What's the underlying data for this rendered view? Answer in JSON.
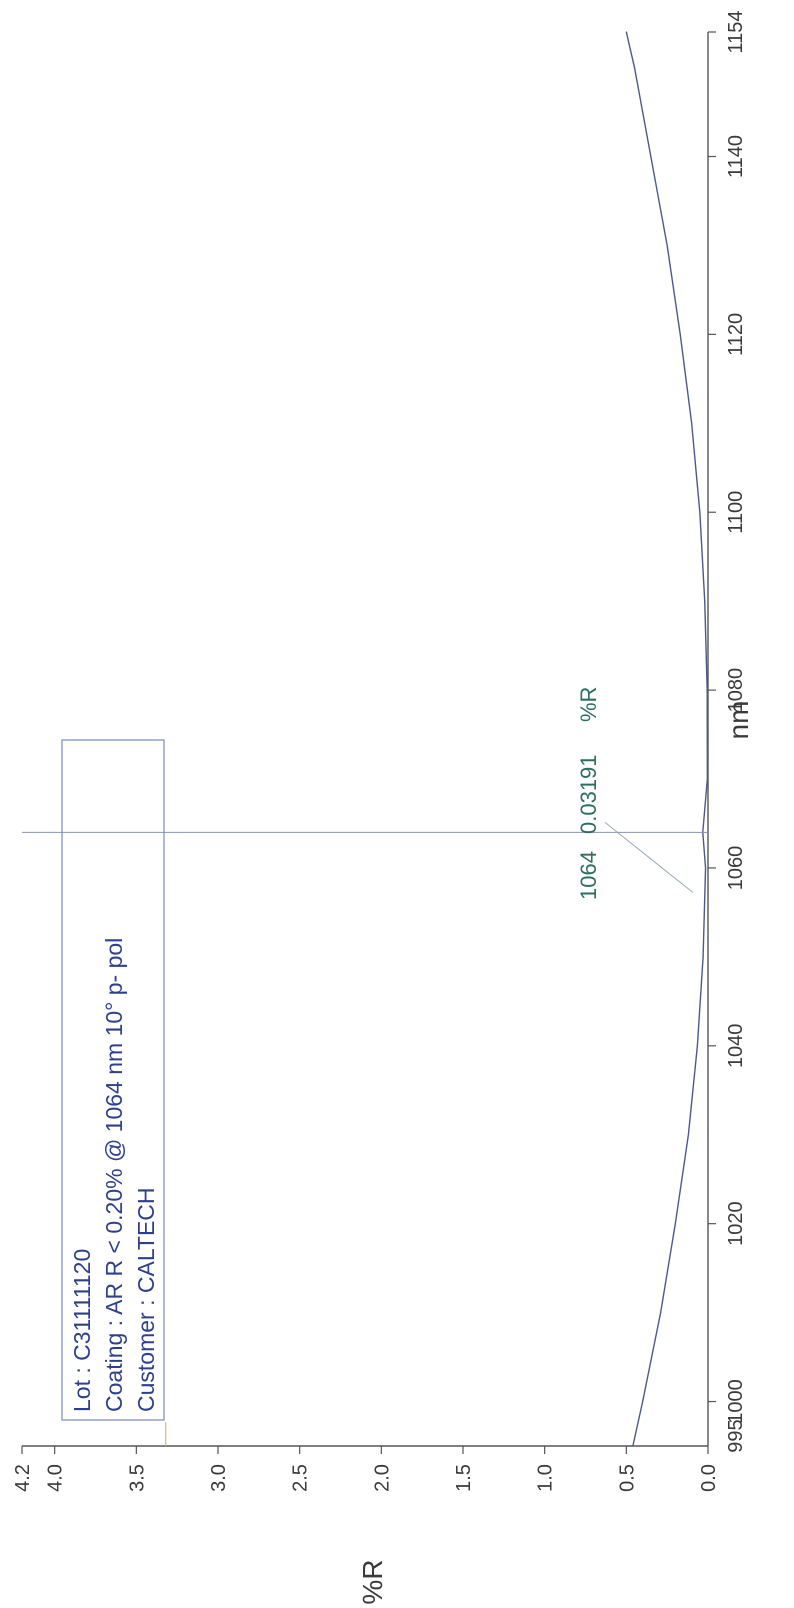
{
  "chart_data": {
    "type": "line",
    "xlabel": "nm",
    "ylabel": "%R",
    "xlim": [
      995,
      1154
    ],
    "ylim": [
      0,
      4.2
    ],
    "x_tick_labels": [
      "1000",
      "1020",
      "1040",
      "1060",
      "1080",
      "1100",
      "1120",
      "1140",
      "1154"
    ],
    "x_start_label": "995",
    "y_tick_labels": [
      "0.0",
      "0.5",
      "1.0",
      "1.5",
      "2.0",
      "2.5",
      "3.0",
      "3.5",
      "4.0",
      "4.2"
    ],
    "series": [
      {
        "color": "#4a5a8a",
        "x": [
          995,
          1000,
          1010,
          1020,
          1030,
          1040,
          1050,
          1060,
          1064,
          1070,
          1080,
          1090,
          1100,
          1110,
          1120,
          1130,
          1140,
          1150,
          1154
        ],
        "y": [
          0.46,
          0.4,
          0.29,
          0.2,
          0.12,
          0.065,
          0.03,
          0.015,
          0.032,
          0.004,
          0.005,
          0.02,
          0.05,
          0.1,
          0.17,
          0.25,
          0.35,
          0.45,
          0.5
        ]
      }
    ],
    "cursor": {
      "x": 1064,
      "y": 0.03191
    },
    "readout": {
      "x_label": "1064",
      "y_label": "0.03191",
      "unit": "%R"
    },
    "info_box": {
      "lot": "Lot : C31111120",
      "coating": "Coating : AR R < 0.20% @ 1064 nm 10° p- pol",
      "customer": "Customer : CALTECH"
    },
    "grid": false
  }
}
